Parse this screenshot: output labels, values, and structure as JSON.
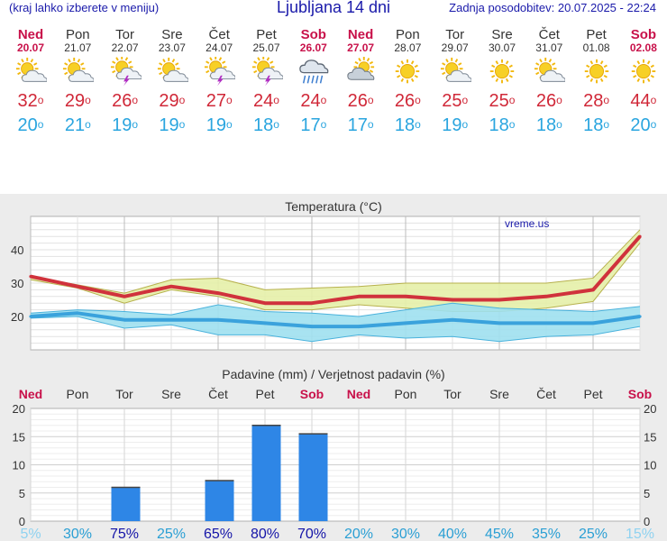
{
  "header": {
    "menu_hint": "(kraj lahko izberete v meniju)",
    "title": "Ljubljana 14 dni",
    "last_update": "Zadnja posodobitev: 20.07.2025 - 22:24"
  },
  "days": [
    {
      "name": "Ned",
      "date": "20.07",
      "weekend": true,
      "icon": "sun-cloud-icon",
      "max": "32",
      "min": "20",
      "precip_prob": "5%",
      "precip_mm": 0
    },
    {
      "name": "Pon",
      "date": "21.07",
      "weekend": false,
      "icon": "sun-cloud-icon",
      "max": "29",
      "min": "21",
      "precip_prob": "30%",
      "precip_mm": 0
    },
    {
      "name": "Tor",
      "date": "22.07",
      "weekend": false,
      "icon": "sun-cloud-thunder-icon",
      "max": "26",
      "min": "19",
      "precip_prob": "75%",
      "precip_mm": 6
    },
    {
      "name": "Sre",
      "date": "23.07",
      "weekend": false,
      "icon": "sun-cloud-icon",
      "max": "29",
      "min": "19",
      "precip_prob": "25%",
      "precip_mm": 0
    },
    {
      "name": "Čet",
      "date": "24.07",
      "weekend": false,
      "icon": "sun-cloud-thunder-icon",
      "max": "27",
      "min": "19",
      "precip_prob": "65%",
      "precip_mm": 7.2
    },
    {
      "name": "Pet",
      "date": "25.07",
      "weekend": false,
      "icon": "sun-cloud-thunder-icon",
      "max": "24",
      "min": "18",
      "precip_prob": "80%",
      "precip_mm": 17
    },
    {
      "name": "Sob",
      "date": "26.07",
      "weekend": true,
      "icon": "rain-cloud-icon",
      "max": "24",
      "min": "17",
      "precip_prob": "70%",
      "precip_mm": 15.5
    },
    {
      "name": "Ned",
      "date": "27.07",
      "weekend": true,
      "icon": "cloud-sun-icon",
      "max": "26",
      "min": "17",
      "precip_prob": "20%",
      "precip_mm": 0
    },
    {
      "name": "Pon",
      "date": "28.07",
      "weekend": false,
      "icon": "sun-icon",
      "max": "26",
      "min": "18",
      "precip_prob": "30%",
      "precip_mm": 0
    },
    {
      "name": "Tor",
      "date": "29.07",
      "weekend": false,
      "icon": "sun-cloud-icon",
      "max": "25",
      "min": "19",
      "precip_prob": "40%",
      "precip_mm": 0
    },
    {
      "name": "Sre",
      "date": "30.07",
      "weekend": false,
      "icon": "sun-icon",
      "max": "25",
      "min": "18",
      "precip_prob": "45%",
      "precip_mm": 0
    },
    {
      "name": "Čet",
      "date": "31.07",
      "weekend": false,
      "icon": "sun-cloud-icon",
      "max": "26",
      "min": "18",
      "precip_prob": "35%",
      "precip_mm": 0
    },
    {
      "name": "Pet",
      "date": "01.08",
      "weekend": false,
      "icon": "sun-icon",
      "max": "28",
      "min": "18",
      "precip_prob": "25%",
      "precip_mm": 0
    },
    {
      "name": "Sob",
      "date": "02.08",
      "weekend": true,
      "icon": "sun-icon",
      "max": "44",
      "min": "20",
      "precip_prob": "15%",
      "precip_mm": 0
    }
  ],
  "chart_data": [
    {
      "type": "line",
      "title": "Temperatura (°C)",
      "watermark": "vreme.us",
      "ylim": [
        10,
        50
      ],
      "yticks": [
        20,
        30,
        40
      ],
      "grid": true,
      "series": [
        {
          "values": [
            32,
            29,
            26,
            29,
            27,
            24,
            24,
            26,
            26,
            25,
            25,
            26,
            28,
            44
          ],
          "color": "#d0323c",
          "upper": [
            32,
            29.5,
            27,
            31,
            31.5,
            28,
            28.5,
            29,
            30,
            30,
            30,
            30,
            31.5,
            46
          ],
          "lower": [
            31,
            28.5,
            24,
            28,
            26,
            22,
            22,
            23.5,
            22.5,
            21.5,
            21.5,
            22.5,
            24.5,
            42
          ]
        },
        {
          "values": [
            20,
            21,
            19,
            19,
            19,
            18,
            17,
            17,
            18,
            19,
            18,
            18,
            18,
            20
          ],
          "color": "#3aa2dc",
          "upper": [
            21,
            22,
            21.5,
            20.5,
            23.5,
            21.5,
            21,
            20,
            22,
            24,
            22.5,
            22,
            21.5,
            23
          ],
          "lower": [
            19.5,
            20,
            16.5,
            17.5,
            14.5,
            14.5,
            12.5,
            14.5,
            13.5,
            14,
            12.5,
            14,
            14.5,
            17
          ]
        }
      ]
    },
    {
      "type": "bar",
      "title": "Padavine (mm) / Verjetnost padavin (%)",
      "ylim": [
        0,
        20
      ],
      "yticks": [
        0,
        5,
        10,
        15,
        20
      ],
      "values": [
        0,
        0,
        6,
        0,
        7.2,
        17,
        15.5,
        0,
        0,
        0,
        0,
        0,
        0,
        0
      ],
      "probabilities": [
        "5%",
        "30%",
        "75%",
        "25%",
        "65%",
        "80%",
        "70%",
        "20%",
        "30%",
        "40%",
        "45%",
        "35%",
        "25%",
        "15%"
      ],
      "bar_color": "#2e86e6"
    }
  ],
  "colors": {
    "weekend": "#c8114a",
    "max_temp": "#d02838",
    "min_temp": "#2aa5df",
    "header_text": "#1a1aaa"
  }
}
